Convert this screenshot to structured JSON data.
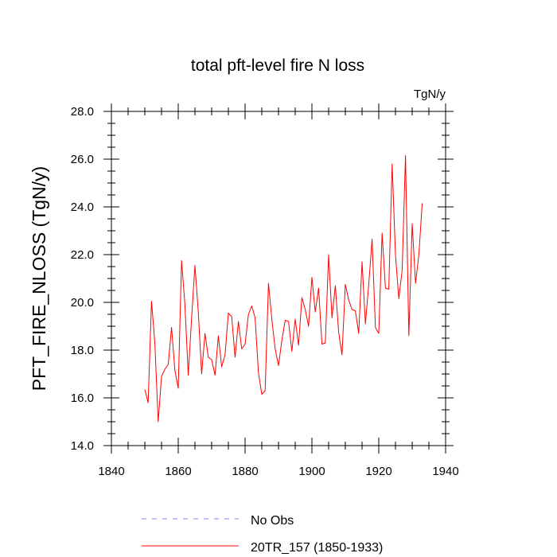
{
  "chart_data": {
    "type": "line",
    "title": "total pft-level fire N loss",
    "units": "TgN/y",
    "xlabel": "",
    "ylabel": "PFT_FIRE_NLOSS  (TgN/y)",
    "xlim": [
      1840,
      1940
    ],
    "ylim": [
      14.0,
      28.0
    ],
    "xticks": [
      1840,
      1860,
      1880,
      1900,
      1920,
      1940
    ],
    "xtick_labels": [
      "1840",
      "1860",
      "1880",
      "1900",
      "1920",
      "1940"
    ],
    "yticks": [
      14.0,
      16.0,
      18.0,
      20.0,
      22.0,
      24.0,
      26.0,
      28.0
    ],
    "ytick_labels": [
      "14.0",
      "16.0",
      "18.0",
      "20.0",
      "22.0",
      "24.0",
      "26.0",
      "28.0"
    ],
    "grid": false,
    "legend_position": "bottom",
    "series": [
      {
        "name": "No Obs",
        "color": "#8080ff",
        "dashed": true,
        "x": [],
        "values": []
      },
      {
        "name": "20TR_157 (1850-1933)",
        "color": "#ff0000",
        "dashed": false,
        "x": [
          1850,
          1851,
          1852,
          1853,
          1854,
          1855,
          1856,
          1857,
          1858,
          1859,
          1860,
          1861,
          1862,
          1863,
          1864,
          1865,
          1866,
          1867,
          1868,
          1869,
          1870,
          1871,
          1872,
          1873,
          1874,
          1875,
          1876,
          1877,
          1878,
          1879,
          1880,
          1881,
          1882,
          1883,
          1884,
          1885,
          1886,
          1887,
          1888,
          1889,
          1890,
          1891,
          1892,
          1893,
          1894,
          1895,
          1896,
          1897,
          1898,
          1899,
          1900,
          1901,
          1902,
          1903,
          1904,
          1905,
          1906,
          1907,
          1908,
          1909,
          1910,
          1911,
          1912,
          1913,
          1914,
          1915,
          1916,
          1917,
          1918,
          1919,
          1920,
          1921,
          1922,
          1923,
          1924,
          1925,
          1926,
          1927,
          1928,
          1929,
          1930,
          1931,
          1932,
          1933
        ],
        "values": [
          16.35,
          15.8,
          20.05,
          18.3,
          15.0,
          16.9,
          17.2,
          17.4,
          18.95,
          17.15,
          16.4,
          21.75,
          19.9,
          16.95,
          19.35,
          21.55,
          19.6,
          17.0,
          18.7,
          17.7,
          17.6,
          16.95,
          18.6,
          17.3,
          17.8,
          19.55,
          19.4,
          17.7,
          19.2,
          18.05,
          18.25,
          19.5,
          19.85,
          19.35,
          17.05,
          16.15,
          16.3,
          20.8,
          19.3,
          18.05,
          17.35,
          18.4,
          19.25,
          19.2,
          17.95,
          19.3,
          18.2,
          20.2,
          19.7,
          19.0,
          21.05,
          19.6,
          20.6,
          18.25,
          18.3,
          22.0,
          19.35,
          20.7,
          18.75,
          17.8,
          20.75,
          20.1,
          19.7,
          19.65,
          18.7,
          21.7,
          19.1,
          20.75,
          22.65,
          18.95,
          18.7,
          22.9,
          20.6,
          20.55,
          25.8,
          22.0,
          20.15,
          21.35,
          26.15,
          18.6,
          23.3,
          20.8,
          22.0,
          24.15
        ]
      }
    ]
  }
}
